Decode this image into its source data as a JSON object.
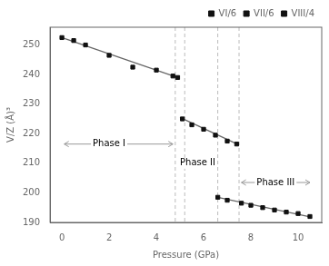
{
  "chart_data": {
    "type": "scatter",
    "xlabel": "Pressure (GPa)",
    "ylabel": "V/Z (Å)³",
    "xlim": [
      -0.5,
      11.0
    ],
    "ylim": [
      190,
      256
    ],
    "xticks": [
      0,
      2,
      4,
      6,
      8,
      10
    ],
    "yticks": [
      190,
      200,
      210,
      220,
      230,
      240,
      250
    ],
    "grid": false,
    "legend": "upper right",
    "series": [
      {
        "name": "VI/6",
        "type": "scatter",
        "marker": "square",
        "color": "#111111",
        "x": [
          0.0,
          0.5,
          1.0,
          2.0,
          3.0,
          4.0,
          4.7,
          4.9
        ],
        "values": [
          252.5,
          251.5,
          250.0,
          246.5,
          242.5,
          241.5,
          239.5,
          239.0
        ]
      },
      {
        "name": "VII/6",
        "type": "scatter",
        "marker": "square",
        "color": "#111111",
        "x": [
          5.1,
          5.5,
          6.0,
          6.5,
          7.0,
          7.4
        ],
        "values": [
          225.0,
          223.0,
          221.5,
          219.5,
          217.5,
          216.5
        ]
      },
      {
        "name": "VIII/4",
        "type": "scatter",
        "marker": "square",
        "color": "#111111",
        "x": [
          6.6,
          7.0,
          7.6,
          8.0,
          8.5,
          9.0,
          9.5,
          10.0,
          10.5
        ],
        "values": [
          198.5,
          197.5,
          196.5,
          195.8,
          195.0,
          194.2,
          193.5,
          193.0,
          192.0
        ]
      },
      {
        "type": "line",
        "line_style": "solid",
        "color": "#666666",
        "x": [
          0.0,
          4.9
        ],
        "values": [
          252.5,
          239.0
        ]
      },
      {
        "type": "line",
        "line_style": "solid",
        "color": "#666666",
        "x": [
          5.0,
          7.5
        ],
        "values": [
          225.5,
          216.2
        ]
      },
      {
        "type": "line",
        "line_style": "solid",
        "color": "#666666",
        "x": [
          6.6,
          10.55
        ],
        "values": [
          198.5,
          191.8
        ]
      }
    ],
    "annotations": [
      {
        "type": "vline",
        "x": 4.8,
        "color": "#bbbbbb",
        "line_style": "dashed"
      },
      {
        "type": "vline",
        "x": 5.2,
        "color": "#bbbbbb",
        "line_style": "dashed"
      },
      {
        "type": "vline",
        "x": 6.6,
        "color": "#bbbbbb",
        "line_style": "dashed"
      },
      {
        "type": "vline",
        "x": 7.5,
        "color": "#bbbbbb",
        "line_style": "dashed"
      },
      {
        "type": "arrow",
        "text": "Phase I",
        "x1": 0.1,
        "x2": 4.7,
        "y": 216.5,
        "text_x": 2.0,
        "text_y": 216.5,
        "color": "#999999"
      },
      {
        "type": "arrow",
        "text": "Phase II",
        "x1": 5.0,
        "x2": 6.5,
        "y": 210.0,
        "text_x": 5.75,
        "text_y": 210.0,
        "color": "#999999"
      },
      {
        "type": "arrow",
        "text": "Phase III",
        "x1": 7.6,
        "x2": 10.5,
        "y": 203.5,
        "text_x": 9.05,
        "text_y": 203.5,
        "color": "#999999"
      }
    ]
  }
}
